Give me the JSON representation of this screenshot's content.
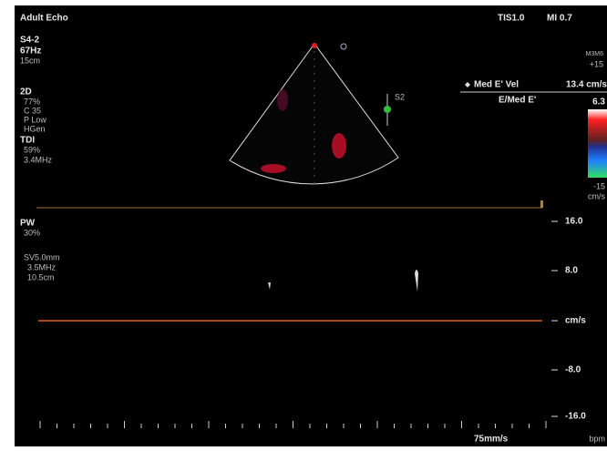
{
  "header": {
    "preset": "Adult Echo",
    "tis": "TIS1.0",
    "mi": "MI 0.7"
  },
  "probe": {
    "name": "S4-2",
    "frame_rate": "67Hz",
    "depth": "15cm"
  },
  "mode_2d": {
    "label": "2D",
    "gain": "77%",
    "compression": "C 35",
    "power": "P Low",
    "frequency": "HGen"
  },
  "tdi": {
    "label": "TDI",
    "gain": "59%",
    "frequency": "3.4MHz"
  },
  "color_scale": {
    "map": "M3M6",
    "top": "+15",
    "bottom": "-15",
    "unit": "cm/s"
  },
  "measurements": [
    {
      "label": "Med E' Vel",
      "value": "13.4 cm/s"
    },
    {
      "label": "E/Med E'",
      "value": "6.3"
    }
  ],
  "sector_marker": "S2",
  "pw": {
    "label": "PW",
    "gain": "30%",
    "sample_volume": "SV5.0mm",
    "frequency": "3.5MHz",
    "depth": "10.5cm"
  },
  "velocity_scale": [
    "16.0",
    "8.0",
    "cm/s",
    "-8.0",
    "-16.0"
  ],
  "sweep_speed": "75mm/s",
  "heart_rate": "bpm"
}
